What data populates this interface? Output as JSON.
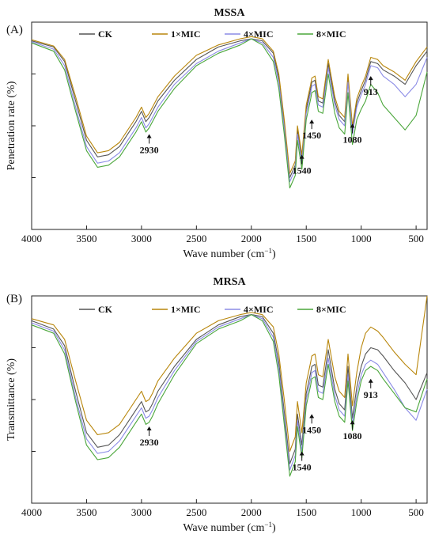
{
  "chart_data": [
    {
      "type": "line",
      "panel_label": "(A)",
      "title": "MSSA",
      "xlabel": "Wave number (cm",
      "xlabel_sup": "−1",
      "xlabel_end": ")",
      "ylabel": "Penetration rate (%)",
      "xlim": [
        4000,
        400
      ],
      "x_reversed": true,
      "x_ticks": [
        4000,
        3500,
        3000,
        2500,
        2000,
        1500,
        1000,
        500
      ],
      "x_tick_labels": [
        "4000",
        "3500",
        "3000",
        "2500",
        "2000",
        "1500",
        "1000",
        "500"
      ],
      "ylim": [
        0,
        100
      ],
      "y_tick_labels_shown": false,
      "legend_position": "top",
      "annotations": [
        {
          "text": "2930",
          "x": 2930,
          "y": 46
        },
        {
          "text": "1540",
          "x": 1540,
          "y": 36
        },
        {
          "text": "1450",
          "x": 1450,
          "y": 53
        },
        {
          "text": "1080",
          "x": 1080,
          "y": 51
        },
        {
          "text": "913",
          "x": 913,
          "y": 74
        }
      ],
      "x": [
        4000,
        3800,
        3700,
        3600,
        3500,
        3400,
        3300,
        3200,
        3100,
        3050,
        3000,
        2960,
        2930,
        2900,
        2850,
        2700,
        2500,
        2300,
        2100,
        2000,
        1900,
        1800,
        1750,
        1700,
        1650,
        1600,
        1580,
        1540,
        1500,
        1460,
        1450,
        1420,
        1390,
        1350,
        1300,
        1240,
        1200,
        1150,
        1120,
        1080,
        1040,
        1000,
        960,
        913,
        850,
        800,
        700,
        600,
        500,
        400
      ],
      "series": [
        {
          "name": "CK",
          "color": "#555555",
          "values": [
            91.0,
            88.0,
            81.0,
            62.0,
            43.0,
            35.0,
            36.0,
            40.0,
            48.0,
            52.0,
            57.0,
            52.0,
            54.0,
            57.0,
            62.0,
            72.0,
            82.0,
            88.0,
            91.0,
            92.0,
            91.0,
            85.0,
            73.0,
            51.0,
            25.0,
            31.0,
            48.0,
            34.0,
            58.0,
            68.0,
            71.0,
            72.0,
            62.0,
            61.0,
            80.0,
            62.0,
            55.0,
            52.0,
            73.0,
            48.0,
            61.0,
            67.0,
            72.0,
            81.0,
            80.0,
            77.0,
            74.0,
            70.0,
            79.0,
            86.0
          ]
        },
        {
          "name": "1×MIC",
          "color": "#b8860b",
          "values": [
            91.5,
            88.5,
            82.0,
            64.0,
            45.0,
            37.0,
            38.0,
            42.0,
            50.0,
            54.0,
            59.0,
            54.0,
            56.0,
            59.0,
            64.0,
            74.0,
            84.0,
            89.0,
            92.0,
            93.0,
            92.0,
            86.0,
            75.0,
            53.0,
            27.0,
            33.0,
            50.0,
            36.0,
            60.0,
            70.0,
            73.0,
            74.0,
            64.0,
            63.0,
            82.0,
            64.0,
            57.0,
            54.0,
            75.0,
            50.0,
            63.0,
            69.0,
            74.0,
            83.0,
            82.0,
            79.0,
            76.0,
            72.0,
            81.0,
            88.0
          ]
        },
        {
          "name": "4×MIC",
          "color": "#8b8be6",
          "values": [
            90.5,
            87.0,
            79.0,
            59.0,
            40.0,
            32.0,
            33.0,
            37.0,
            45.0,
            49.0,
            54.0,
            49.0,
            51.0,
            54.0,
            59.0,
            70.0,
            80.0,
            86.0,
            90.0,
            92.0,
            90.0,
            83.0,
            71.0,
            49.0,
            23.0,
            29.0,
            46.0,
            32.0,
            56.0,
            66.0,
            69.0,
            70.0,
            60.0,
            59.0,
            78.0,
            60.0,
            53.0,
            50.0,
            71.0,
            46.0,
            59.0,
            65.0,
            70.0,
            79.0,
            78.0,
            74.0,
            70.0,
            64.0,
            70.0,
            83.0
          ]
        },
        {
          "name": "8×MIC",
          "color": "#4aa63a",
          "values": [
            90.0,
            86.0,
            77.0,
            57.0,
            38.0,
            30.0,
            31.0,
            35.0,
            43.0,
            47.0,
            52.0,
            47.0,
            49.0,
            52.0,
            57.0,
            68.0,
            79.0,
            85.0,
            89.0,
            92.0,
            89.0,
            81.0,
            68.0,
            46.0,
            20.0,
            26.0,
            43.0,
            29.0,
            53.0,
            63.0,
            66.0,
            67.0,
            57.0,
            56.0,
            75.0,
            56.0,
            49.0,
            46.0,
            66.0,
            41.0,
            53.0,
            58.0,
            62.0,
            70.0,
            66.0,
            60.0,
            54.0,
            48.0,
            55.0,
            76.0
          ]
        }
      ]
    },
    {
      "type": "line",
      "panel_label": "(B)",
      "title": "MRSA",
      "xlabel": "Wave number (cm",
      "xlabel_sup": "−1",
      "xlabel_end": ")",
      "ylabel": "Transmittance (%)",
      "xlim": [
        4000,
        400
      ],
      "x_reversed": true,
      "x_ticks": [
        4000,
        3500,
        3000,
        2500,
        2000,
        1500,
        1000,
        500
      ],
      "x_tick_labels": [
        "4000",
        "3500",
        "3000",
        "2500",
        "2000",
        "1500",
        "1000",
        "500"
      ],
      "ylim": [
        0,
        100
      ],
      "y_tick_labels_shown": false,
      "legend_position": "top",
      "annotations": [
        {
          "text": "2930",
          "x": 2930,
          "y": 37
        },
        {
          "text": "1540",
          "x": 1540,
          "y": 25
        },
        {
          "text": "1450",
          "x": 1450,
          "y": 43
        },
        {
          "text": "1080",
          "x": 1080,
          "y": 40
        },
        {
          "text": "913",
          "x": 913,
          "y": 60
        }
      ],
      "x": [
        4000,
        3800,
        3700,
        3600,
        3500,
        3400,
        3300,
        3200,
        3100,
        3050,
        3000,
        2960,
        2930,
        2900,
        2850,
        2700,
        2500,
        2300,
        2100,
        2000,
        1900,
        1800,
        1750,
        1700,
        1650,
        1600,
        1580,
        1540,
        1500,
        1460,
        1450,
        1420,
        1390,
        1350,
        1300,
        1240,
        1200,
        1150,
        1120,
        1080,
        1040,
        1000,
        960,
        913,
        850,
        800,
        700,
        600,
        500,
        400
      ],
      "series": [
        {
          "name": "CK",
          "color": "#555555",
          "values": [
            88.0,
            84.0,
            76.0,
            54.0,
            34.0,
            27.0,
            28.0,
            33.0,
            41.0,
            45.0,
            49.0,
            44.0,
            45.0,
            48.0,
            54.0,
            66.0,
            79.0,
            86.0,
            90.0,
            91.0,
            90.0,
            82.0,
            68.0,
            44.0,
            19.0,
            26.0,
            43.0,
            28.0,
            53.0,
            63.0,
            66.0,
            67.0,
            57.0,
            56.0,
            74.0,
            55.0,
            48.0,
            45.0,
            66.0,
            41.0,
            56.0,
            66.0,
            72.0,
            75.0,
            74.0,
            71.0,
            64.0,
            58.0,
            50.0,
            63.0
          ]
        },
        {
          "name": "1×MIC",
          "color": "#b8860b",
          "values": [
            89.0,
            86.0,
            79.0,
            59.0,
            40.0,
            33.0,
            34.0,
            38.0,
            46.0,
            50.0,
            54.0,
            49.0,
            50.0,
            53.0,
            59.0,
            70.0,
            82.0,
            88.0,
            91.0,
            92.0,
            91.0,
            85.0,
            72.0,
            50.0,
            25.0,
            32.0,
            49.0,
            34.0,
            58.0,
            68.0,
            71.0,
            72.0,
            62.0,
            61.0,
            79.0,
            61.0,
            54.0,
            51.0,
            72.0,
            47.0,
            63.0,
            75.0,
            82.0,
            85.0,
            83.0,
            80.0,
            73.0,
            67.0,
            62.0,
            100.0
          ]
        },
        {
          "name": "4×MIC",
          "color": "#8b8be6",
          "values": [
            87.0,
            83.0,
            74.0,
            51.0,
            31.0,
            24.0,
            25.0,
            30.0,
            38.0,
            42.0,
            46.0,
            41.0,
            42.0,
            45.0,
            51.0,
            64.0,
            78.0,
            85.0,
            89.0,
            91.0,
            89.0,
            80.0,
            65.0,
            41.0,
            16.0,
            23.0,
            40.0,
            25.0,
            50.0,
            60.0,
            63.0,
            64.0,
            54.0,
            53.0,
            70.0,
            52.0,
            45.0,
            42.0,
            62.0,
            38.0,
            52.0,
            62.0,
            67.0,
            69.0,
            67.0,
            63.0,
            55.0,
            46.0,
            40.0,
            55.0
          ]
        },
        {
          "name": "8×MIC",
          "color": "#4aa63a",
          "values": [
            86.0,
            82.0,
            72.0,
            49.0,
            28.0,
            21.0,
            22.0,
            27.0,
            35.0,
            39.0,
            43.0,
            38.0,
            39.0,
            42.0,
            48.0,
            62.0,
            77.0,
            84.0,
            88.0,
            91.0,
            88.0,
            78.0,
            62.0,
            38.0,
            13.0,
            20.0,
            37.0,
            22.0,
            47.0,
            57.0,
            60.0,
            61.0,
            51.0,
            50.0,
            67.0,
            49.0,
            42.0,
            39.0,
            59.0,
            35.0,
            49.0,
            59.0,
            64.0,
            66.0,
            64.0,
            60.0,
            53.0,
            46.0,
            44.0,
            60.0
          ]
        }
      ]
    }
  ]
}
